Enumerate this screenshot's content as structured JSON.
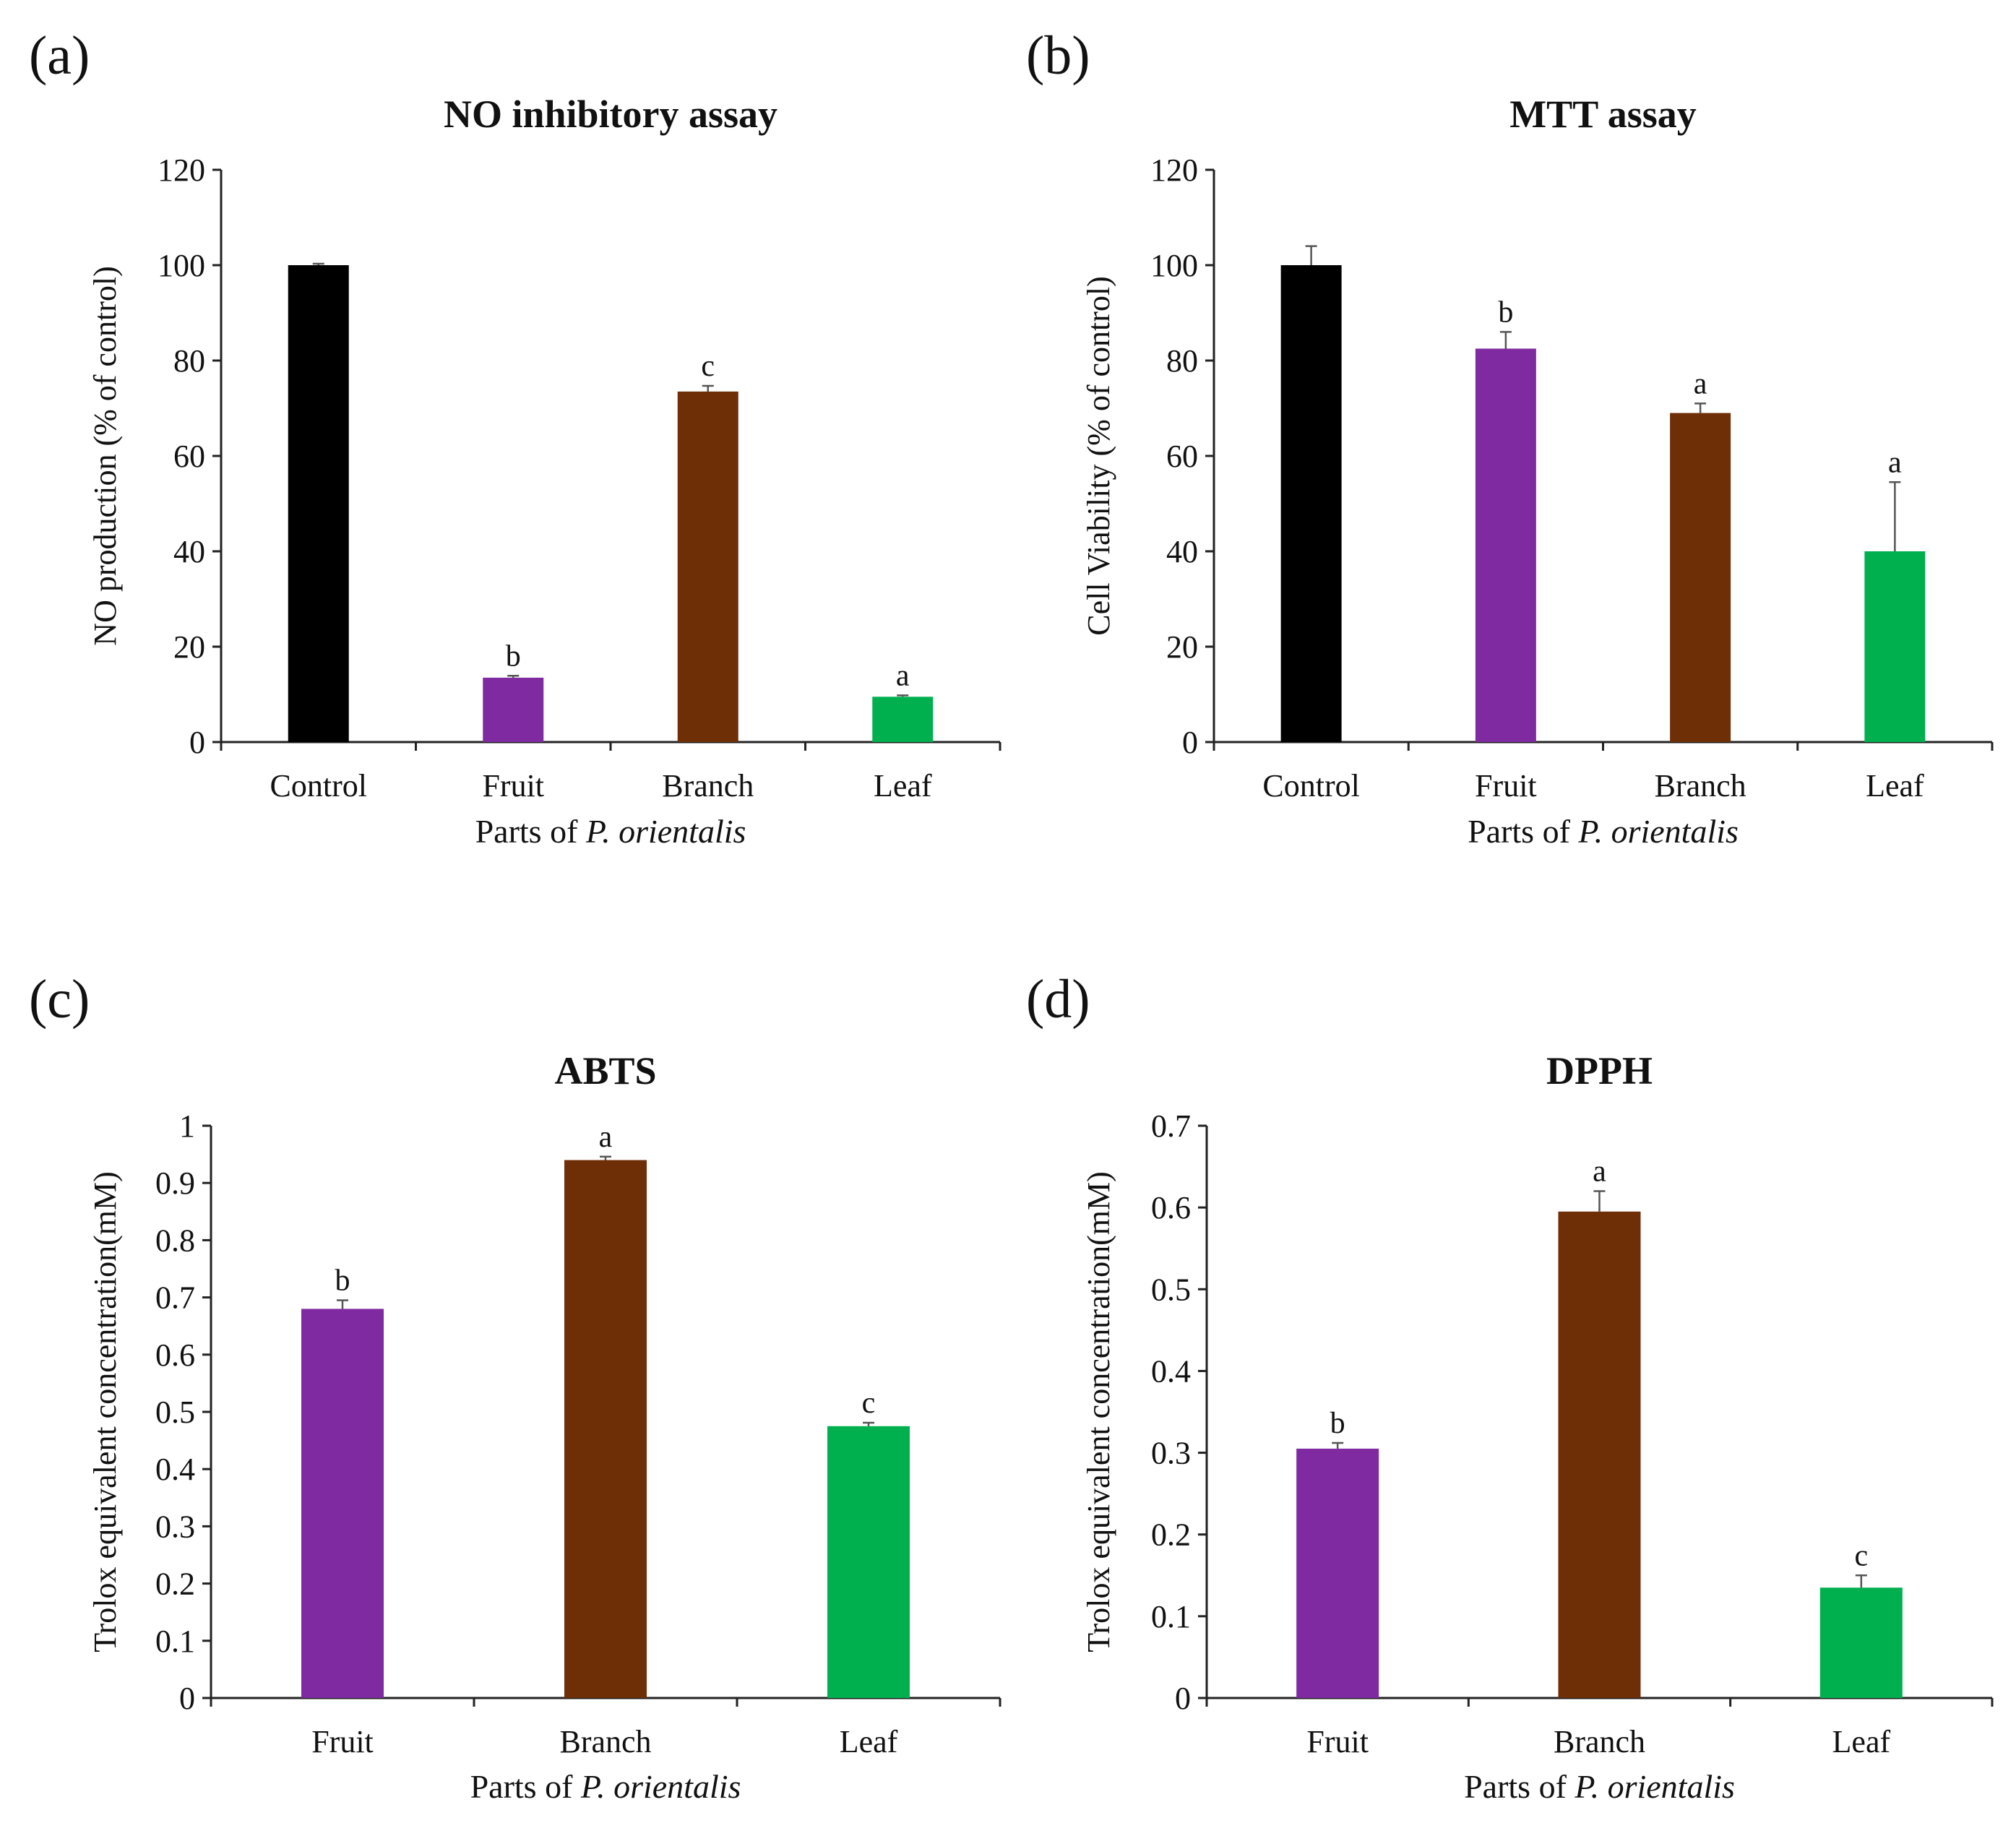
{
  "chart_data": [
    {
      "panel": "(a)",
      "type": "bar",
      "title": "NO inhibitory assay",
      "categories": [
        "Control",
        "Fruit",
        "Branch",
        "Leaf"
      ],
      "values": [
        100,
        13.5,
        73.5,
        9.5
      ],
      "errors": [
        0.3,
        0.4,
        1.2,
        0.3
      ],
      "letters": [
        "",
        "b",
        "c",
        "a"
      ],
      "colors": [
        "#000000",
        "#7f2aa0",
        "#6e2e06",
        "#00b04f"
      ],
      "xlabel_prefix": "Parts of",
      "xlabel_species": "P. orientalis",
      "ylabel": "NO production (% of control)",
      "ylim": [
        0,
        120
      ],
      "yticks": [
        "0",
        "20",
        "40",
        "60",
        "80",
        "100",
        "120"
      ]
    },
    {
      "panel": "(b)",
      "type": "bar",
      "title": "MTT assay",
      "categories": [
        "Control",
        "Fruit",
        "Branch",
        "Leaf"
      ],
      "values": [
        100,
        82.5,
        69,
        40
      ],
      "errors": [
        4,
        3.5,
        2,
        14.5
      ],
      "letters": [
        "",
        "b",
        "a",
        "a"
      ],
      "colors": [
        "#000000",
        "#7f2aa0",
        "#6e2e06",
        "#00b04f"
      ],
      "xlabel_prefix": "Parts of",
      "xlabel_species": "P. orientalis",
      "ylabel": "Cell Viability (% of control)",
      "ylim": [
        0,
        120
      ],
      "yticks": [
        "0",
        "20",
        "40",
        "60",
        "80",
        "100",
        "120"
      ]
    },
    {
      "panel": "(c)",
      "type": "bar",
      "title": "ABTS",
      "categories": [
        "Fruit",
        "Branch",
        "Leaf"
      ],
      "values": [
        0.68,
        0.94,
        0.475
      ],
      "errors": [
        0.015,
        0.006,
        0.006
      ],
      "letters": [
        "b",
        "a",
        "c"
      ],
      "colors": [
        "#7f2aa0",
        "#6e2e06",
        "#00b04f"
      ],
      "xlabel_prefix": "Parts of",
      "xlabel_species": "P. orientalis",
      "ylabel": "Trolox equivalent concentration(mM)",
      "ylim": [
        0,
        1
      ],
      "yticks": [
        "0",
        "0.1",
        "0.2",
        "0.3",
        "0.4",
        "0.5",
        "0.6",
        "0.7",
        "0.8",
        "0.9",
        "1"
      ]
    },
    {
      "panel": "(d)",
      "type": "bar",
      "title": "DPPH",
      "categories": [
        "Fruit",
        "Branch",
        "Leaf"
      ],
      "values": [
        0.305,
        0.595,
        0.135
      ],
      "errors": [
        0.007,
        0.025,
        0.015
      ],
      "letters": [
        "b",
        "a",
        "c"
      ],
      "colors": [
        "#7f2aa0",
        "#6e2e06",
        "#00b04f"
      ],
      "xlabel_prefix": "Parts of",
      "xlabel_species": "P. orientalis",
      "ylabel": "Trolox equivalent concentration(mM)",
      "ylim": [
        0,
        0.7
      ],
      "yticks": [
        "0",
        "0.1",
        "0.2",
        "0.3",
        "0.4",
        "0.5",
        "0.6",
        "0.7"
      ]
    }
  ]
}
